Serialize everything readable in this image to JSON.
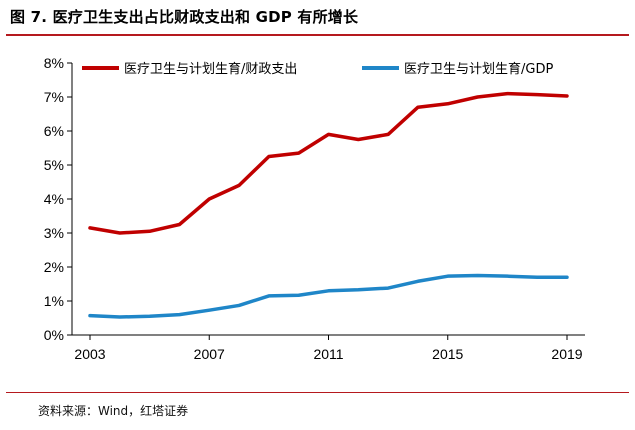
{
  "figure": {
    "title": "图 7. 医疗卫生支出占比财政支出和 GDP 有所增长",
    "source": "资料来源：Wind，红塔证券"
  },
  "colors": {
    "rule": "#b5191e",
    "series_1": "#c00000",
    "series_2": "#1f86c8"
  },
  "chart_data": {
    "type": "line",
    "x": [
      2003,
      2004,
      2005,
      2006,
      2007,
      2008,
      2009,
      2010,
      2011,
      2012,
      2013,
      2014,
      2015,
      2016,
      2017,
      2018,
      2019
    ],
    "x_ticks": [
      "2003",
      "2007",
      "2011",
      "2015",
      "2019"
    ],
    "y_ticks": [
      "0%",
      "1%",
      "2%",
      "3%",
      "4%",
      "5%",
      "6%",
      "7%",
      "8%"
    ],
    "ylim": [
      0,
      8
    ],
    "legend_position": "top",
    "grid": false,
    "series": [
      {
        "name": "医疗卫生与计划生育/财政支出",
        "values": [
          3.15,
          3.0,
          3.05,
          3.25,
          4.0,
          4.4,
          5.25,
          5.35,
          5.9,
          5.75,
          5.9,
          6.7,
          6.8,
          7.0,
          7.1,
          7.07,
          7.03
        ]
      },
      {
        "name": "医疗卫生与计划生育/GDP",
        "values": [
          0.57,
          0.53,
          0.55,
          0.6,
          0.73,
          0.87,
          1.15,
          1.17,
          1.3,
          1.33,
          1.38,
          1.58,
          1.73,
          1.75,
          1.73,
          1.7,
          1.7
        ]
      }
    ]
  }
}
